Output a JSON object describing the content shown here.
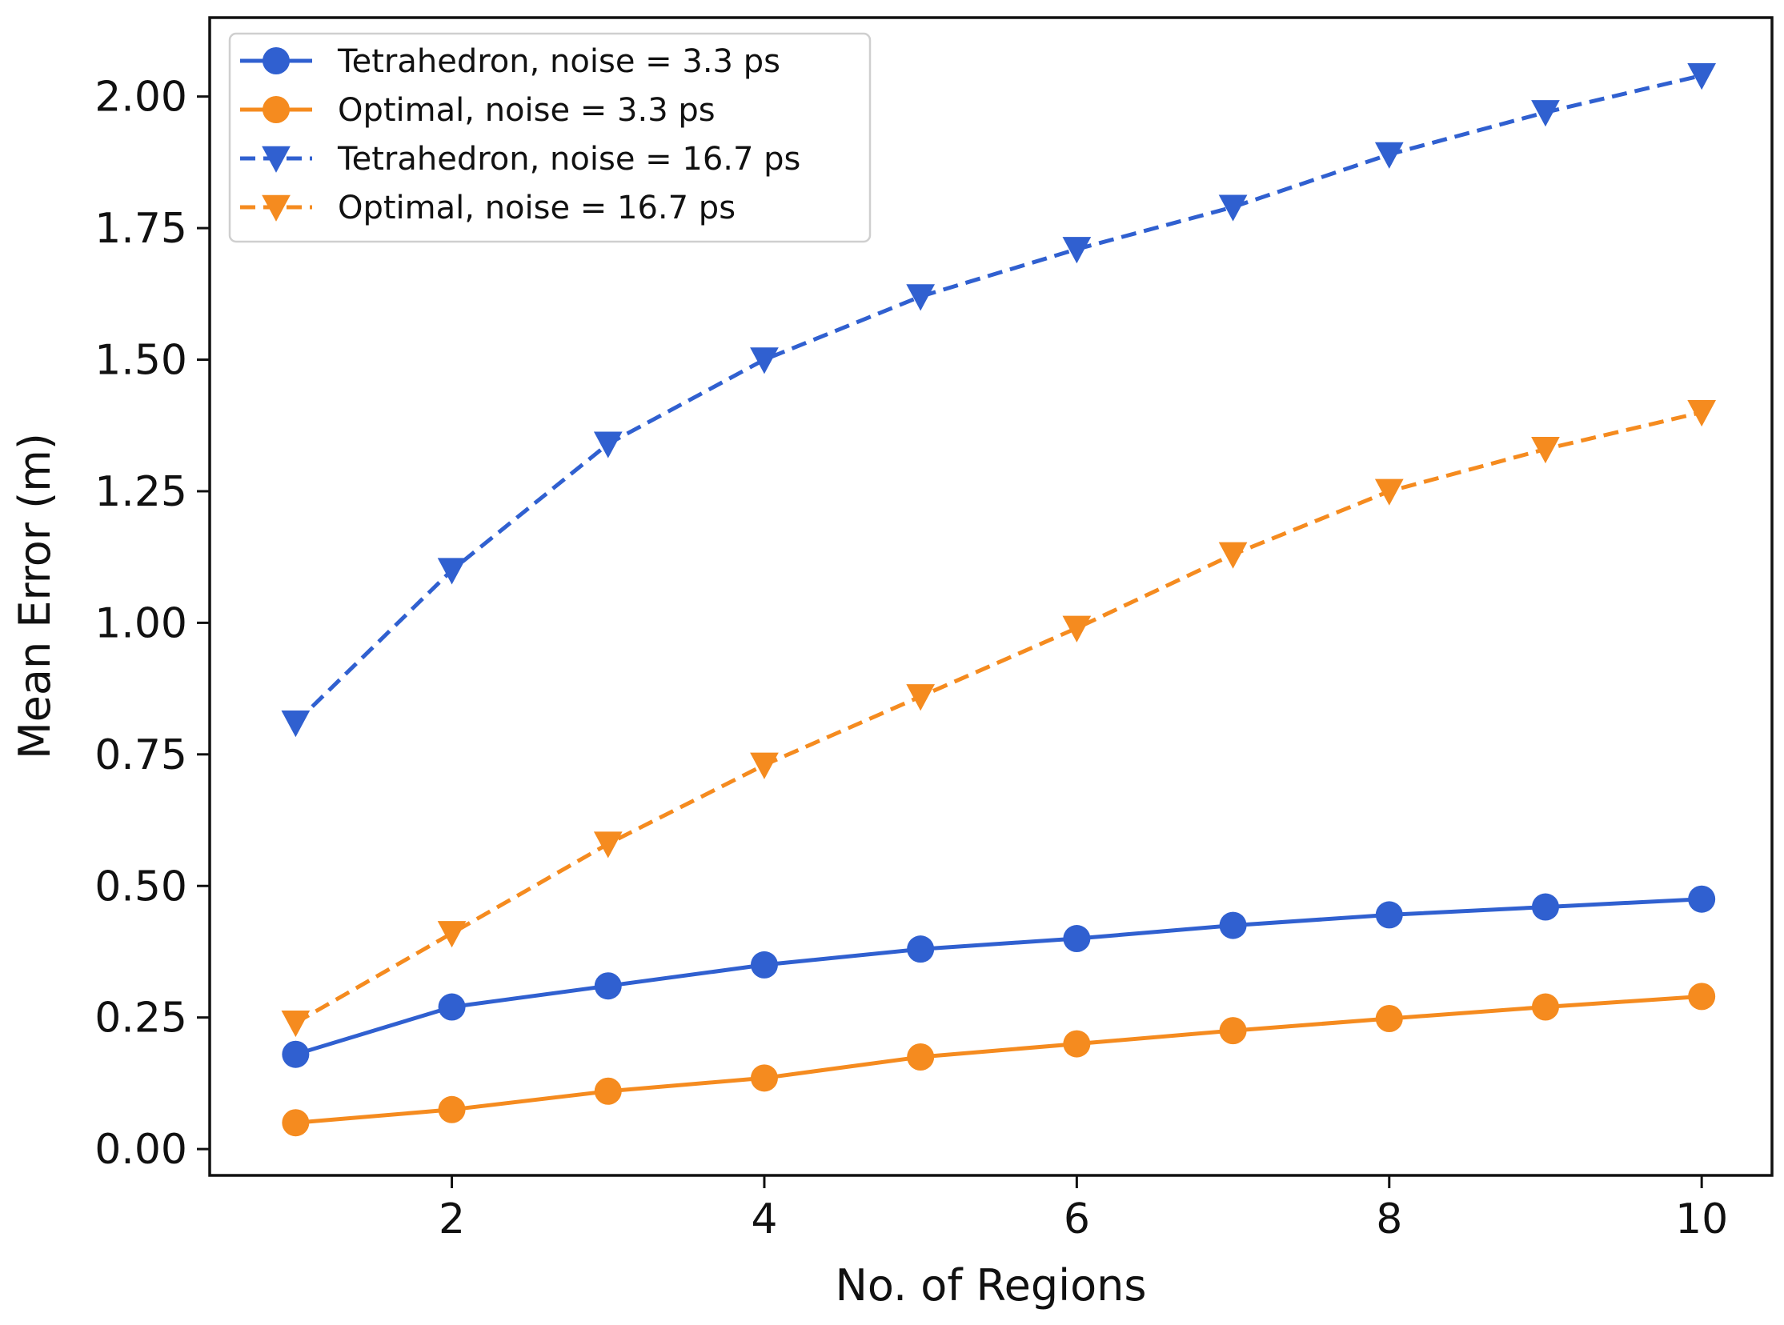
{
  "chart_data": {
    "type": "line",
    "title": "",
    "xlabel": "No. of Regions",
    "ylabel": "Mean Error (m)",
    "x": [
      1,
      2,
      3,
      4,
      5,
      6,
      7,
      8,
      9,
      10
    ],
    "xlim": [
      0.45,
      10.45
    ],
    "ylim": [
      -0.05,
      2.15
    ],
    "xticks": [
      2,
      4,
      6,
      8,
      10
    ],
    "xtick_labels": [
      "2",
      "4",
      "6",
      "8",
      "10"
    ],
    "yticks": [
      0.0,
      0.25,
      0.5,
      0.75,
      1.0,
      1.25,
      1.5,
      1.75,
      2.0
    ],
    "ytick_labels": [
      "0.00",
      "0.25",
      "0.50",
      "0.75",
      "1.00",
      "1.25",
      "1.50",
      "1.75",
      "2.00"
    ],
    "grid": false,
    "legend_position": "top-left",
    "series": [
      {
        "name": "Tetrahedron, noise = 3.3 ps",
        "color": "#3060d0",
        "line": "solid",
        "marker": "circle",
        "values": [
          0.18,
          0.27,
          0.31,
          0.35,
          0.38,
          0.4,
          0.425,
          0.445,
          0.46,
          0.475
        ]
      },
      {
        "name": "Optimal, noise = 3.3 ps",
        "color": "#f58b1f",
        "line": "solid",
        "marker": "circle",
        "values": [
          0.05,
          0.075,
          0.11,
          0.135,
          0.175,
          0.2,
          0.225,
          0.248,
          0.27,
          0.29
        ]
      },
      {
        "name": "Tetrahedron, noise = 16.7 ps",
        "color": "#3060d0",
        "line": "dashed",
        "marker": "triangle-down",
        "values": [
          0.81,
          1.1,
          1.34,
          1.5,
          1.62,
          1.71,
          1.79,
          1.89,
          1.97,
          2.04
        ]
      },
      {
        "name": "Optimal, noise = 16.7 ps",
        "color": "#f58b1f",
        "line": "dashed",
        "marker": "triangle-down",
        "values": [
          0.24,
          0.41,
          0.58,
          0.73,
          0.86,
          0.99,
          1.13,
          1.25,
          1.33,
          1.4
        ]
      }
    ]
  }
}
